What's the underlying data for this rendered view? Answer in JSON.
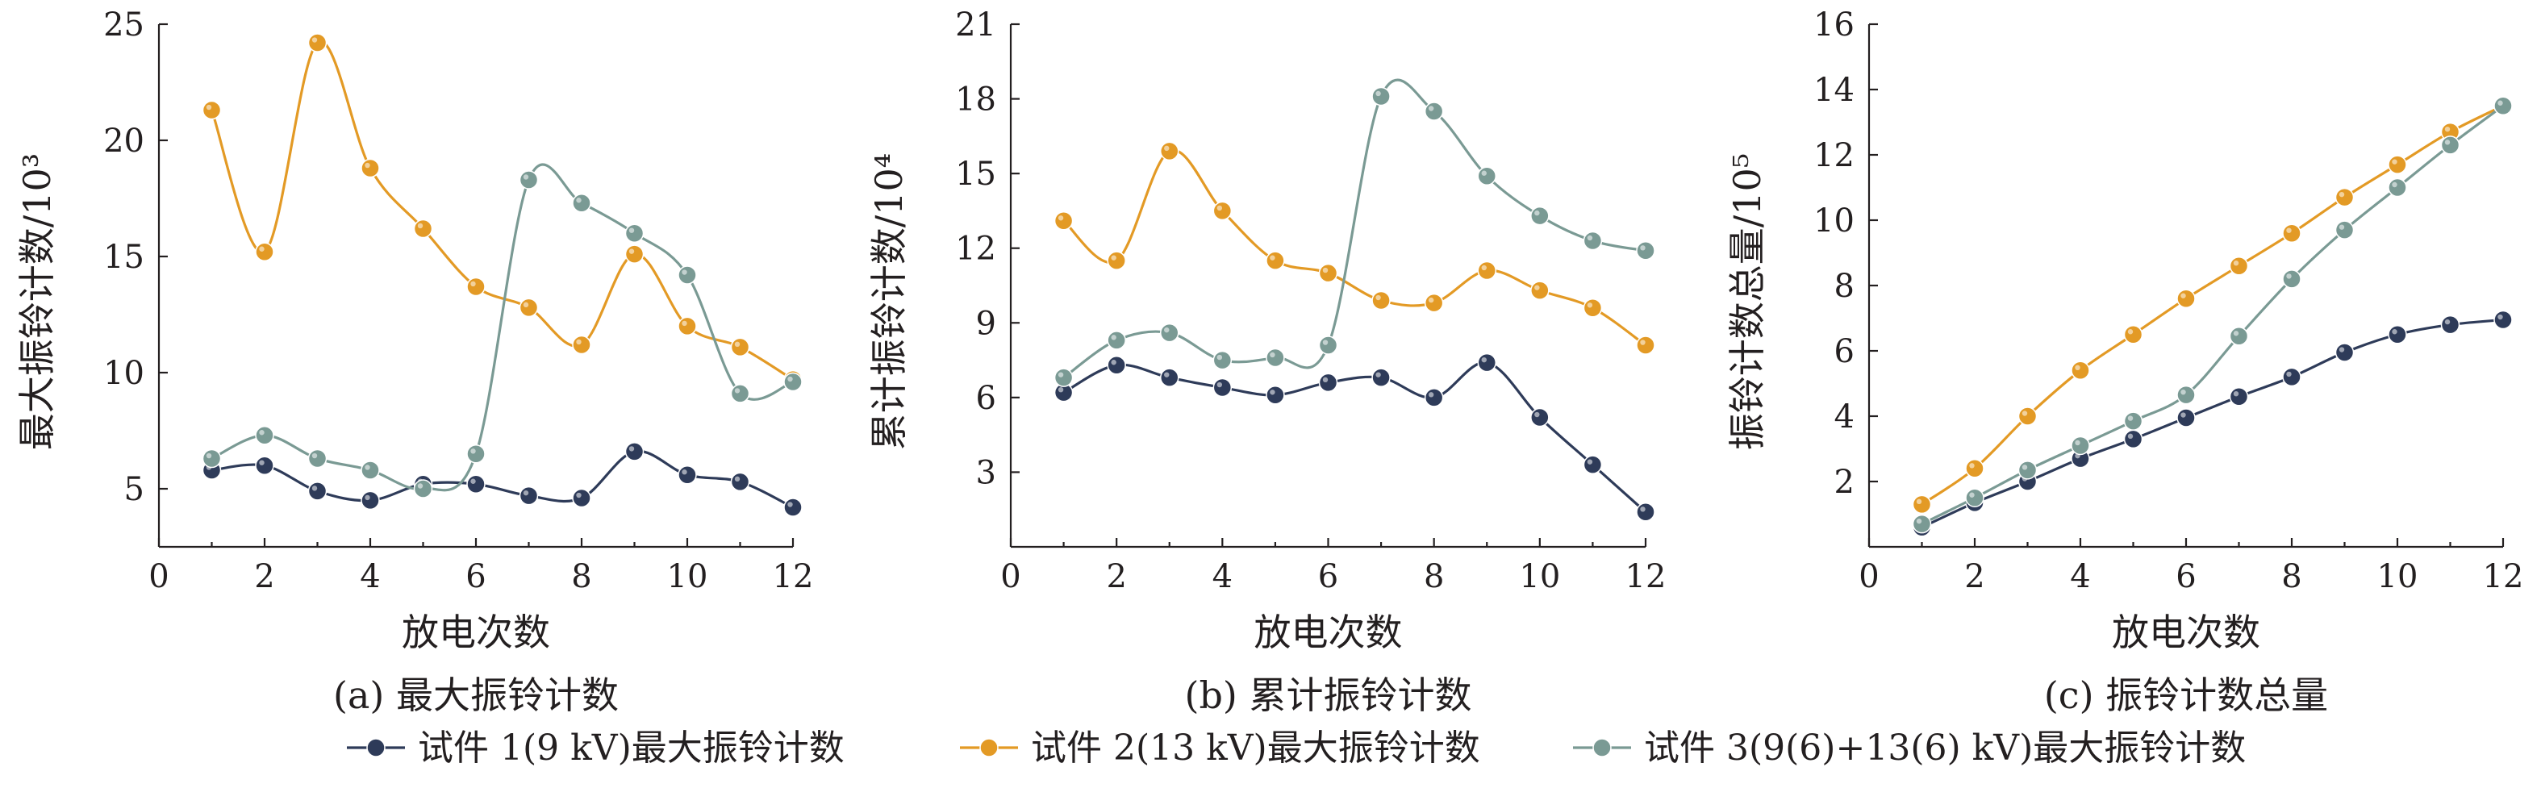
{
  "chart_data": [
    {
      "type": "line",
      "caption": "(a) 最大振铃计数",
      "xlabel": "放电次数",
      "ylabel": "最大振铃计数/10³",
      "xlim": [
        0,
        12
      ],
      "ylim": [
        2.5,
        25
      ],
      "xticks": [
        0,
        2,
        4,
        6,
        8,
        10,
        12
      ],
      "yticks": [
        5,
        10,
        15,
        20,
        25
      ],
      "x": [
        1,
        2,
        3,
        4,
        5,
        6,
        7,
        8,
        9,
        10,
        11,
        12
      ],
      "series": [
        {
          "name": "试件 1(9 kV)最大振铃计数",
          "values": [
            5.8,
            6.0,
            4.9,
            4.5,
            5.2,
            5.2,
            4.7,
            4.6,
            6.6,
            5.6,
            5.3,
            4.2
          ]
        },
        {
          "name": "试件 2(13 kV)最大振铃计数",
          "values": [
            21.3,
            15.2,
            24.2,
            18.8,
            16.2,
            13.7,
            12.8,
            11.2,
            15.1,
            12.0,
            11.1,
            9.7
          ]
        },
        {
          "name": "试件 3(9(6)+13(6) kV)最大振铃计数",
          "values": [
            6.3,
            7.3,
            6.3,
            5.8,
            5.0,
            6.5,
            18.3,
            17.3,
            16.0,
            14.2,
            9.1,
            9.6
          ]
        }
      ]
    },
    {
      "type": "line",
      "caption": "(b) 累计振铃计数",
      "xlabel": "放电次数",
      "ylabel": "累计振铃计数/10⁴",
      "xlim": [
        0,
        12
      ],
      "ylim": [
        0,
        21
      ],
      "xticks": [
        0,
        2,
        4,
        6,
        8,
        10,
        12
      ],
      "yticks": [
        3,
        6,
        9,
        12,
        15,
        18,
        21
      ],
      "x": [
        1,
        2,
        3,
        4,
        5,
        6,
        7,
        8,
        9,
        10,
        11,
        12
      ],
      "series": [
        {
          "name": "试件 1(9 kV)最大振铃计数",
          "values": [
            6.2,
            7.3,
            6.8,
            6.4,
            6.1,
            6.6,
            6.8,
            6.0,
            7.4,
            5.2,
            3.3,
            1.4
          ]
        },
        {
          "name": "试件 2(13 kV)最大振铃计数",
          "values": [
            13.1,
            11.5,
            15.9,
            13.5,
            11.5,
            11.0,
            9.9,
            9.8,
            11.1,
            10.3,
            9.6,
            8.1
          ]
        },
        {
          "name": "试件 3(9(6)+13(6) kV)最大振铃计数",
          "values": [
            6.8,
            8.3,
            8.6,
            7.5,
            7.6,
            8.1,
            18.1,
            17.5,
            14.9,
            13.3,
            12.3,
            11.9
          ]
        }
      ]
    },
    {
      "type": "line",
      "caption": "(c) 振铃计数总量",
      "xlabel": "放电次数",
      "ylabel": "振铃计数总量/10⁵",
      "xlim": [
        0,
        12
      ],
      "ylim": [
        0,
        16
      ],
      "xticks": [
        0,
        2,
        4,
        6,
        8,
        10,
        12
      ],
      "yticks": [
        2,
        4,
        6,
        8,
        10,
        12,
        14,
        16
      ],
      "x": [
        1,
        2,
        3,
        4,
        5,
        6,
        7,
        8,
        9,
        10,
        11,
        12
      ],
      "series": [
        {
          "name": "试件 1(9 kV)最大振铃计数",
          "values": [
            0.6,
            1.35,
            2.0,
            2.7,
            3.3,
            3.95,
            4.6,
            5.2,
            5.95,
            6.5,
            6.8,
            6.95
          ]
        },
        {
          "name": "试件 2(13 kV)最大振铃计数",
          "values": [
            1.3,
            2.4,
            4.0,
            5.4,
            6.5,
            7.6,
            8.6,
            9.6,
            10.7,
            11.7,
            12.7,
            13.5
          ]
        },
        {
          "name": "试件 3(9(6)+13(6) kV)最大振铃计数",
          "values": [
            0.7,
            1.5,
            2.35,
            3.1,
            3.85,
            4.65,
            6.45,
            8.2,
            9.7,
            11.0,
            12.3,
            13.5
          ]
        }
      ]
    }
  ],
  "legend": {
    "placement": "bottom-center",
    "items": [
      {
        "label": "试件 1(9 kV)最大振铃计数",
        "color": "#2e3b59"
      },
      {
        "label": "试件 2(13 kV)最大振铃计数",
        "color": "#e39a25"
      },
      {
        "label": "试件 3(9(6)+13(6) kV)最大振铃计数",
        "color": "#7a9a94"
      }
    ]
  },
  "colors": [
    "#2e3b59",
    "#e39a25",
    "#7a9a94"
  ],
  "x_tick_step": 2
}
